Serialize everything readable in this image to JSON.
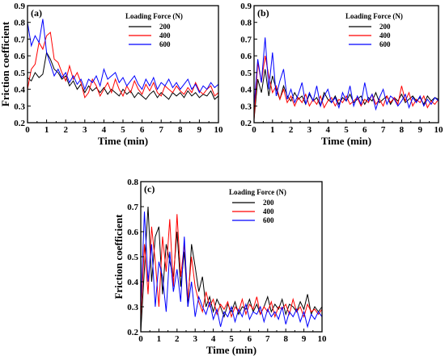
{
  "chart_data": [
    {
      "panel_label": "(a)",
      "type": "line",
      "xlabel": "Time (min)",
      "ylabel": "Friction coefficient",
      "xlim": [
        0,
        10
      ],
      "ylim": [
        0.2,
        0.9
      ],
      "xticks": [
        0,
        1,
        2,
        3,
        4,
        5,
        6,
        7,
        8,
        9,
        10
      ],
      "yticks": [
        0.2,
        0.3,
        0.4,
        0.5,
        0.6,
        0.7,
        0.8,
        0.9
      ],
      "legend_title": "Loading Force (N)",
      "legend_position": "top-right",
      "colors": [
        "#000000",
        "#ff0000",
        "#0000ff"
      ],
      "x": [
        0,
        0.2,
        0.4,
        0.6,
        0.8,
        1.0,
        1.2,
        1.4,
        1.6,
        1.8,
        2.0,
        2.2,
        2.4,
        2.6,
        2.8,
        3.0,
        3.2,
        3.4,
        3.6,
        3.8,
        4.0,
        4.2,
        4.4,
        4.6,
        4.8,
        5.0,
        5.2,
        5.4,
        5.6,
        5.8,
        6.0,
        6.2,
        6.4,
        6.6,
        6.8,
        7.0,
        7.2,
        7.4,
        7.6,
        7.8,
        8.0,
        8.2,
        8.4,
        8.6,
        8.8,
        9.0,
        9.2,
        9.4,
        9.6,
        9.8,
        10.0
      ],
      "series": [
        {
          "name": "200",
          "values": [
            0.47,
            0.45,
            0.5,
            0.47,
            0.49,
            0.62,
            0.58,
            0.52,
            0.5,
            0.46,
            0.48,
            0.42,
            0.45,
            0.4,
            0.43,
            0.38,
            0.42,
            0.39,
            0.41,
            0.38,
            0.41,
            0.37,
            0.4,
            0.38,
            0.36,
            0.4,
            0.37,
            0.39,
            0.35,
            0.38,
            0.36,
            0.34,
            0.37,
            0.39,
            0.35,
            0.38,
            0.36,
            0.34,
            0.38,
            0.36,
            0.38,
            0.35,
            0.39,
            0.36,
            0.38,
            0.35,
            0.37,
            0.36,
            0.39,
            0.34,
            0.36
          ]
        },
        {
          "name": "400",
          "values": [
            0.4,
            0.52,
            0.55,
            0.68,
            0.64,
            0.72,
            0.74,
            0.58,
            0.56,
            0.5,
            0.45,
            0.54,
            0.46,
            0.5,
            0.44,
            0.35,
            0.38,
            0.46,
            0.42,
            0.36,
            0.4,
            0.44,
            0.38,
            0.46,
            0.4,
            0.36,
            0.42,
            0.38,
            0.45,
            0.4,
            0.37,
            0.43,
            0.39,
            0.44,
            0.38,
            0.36,
            0.42,
            0.4,
            0.38,
            0.42,
            0.39,
            0.37,
            0.41,
            0.38,
            0.44,
            0.39,
            0.37,
            0.4,
            0.42,
            0.36,
            0.38
          ]
        },
        {
          "name": "600",
          "values": [
            0.8,
            0.66,
            0.72,
            0.68,
            0.82,
            0.62,
            0.55,
            0.48,
            0.52,
            0.47,
            0.5,
            0.44,
            0.48,
            0.43,
            0.46,
            0.4,
            0.46,
            0.44,
            0.48,
            0.42,
            0.52,
            0.46,
            0.48,
            0.5,
            0.44,
            0.47,
            0.42,
            0.45,
            0.48,
            0.43,
            0.4,
            0.46,
            0.42,
            0.47,
            0.4,
            0.44,
            0.42,
            0.46,
            0.41,
            0.44,
            0.4,
            0.43,
            0.46,
            0.4,
            0.43,
            0.38,
            0.42,
            0.4,
            0.44,
            0.41,
            0.43
          ]
        }
      ]
    },
    {
      "panel_label": "(b)",
      "type": "line",
      "xlabel": "Time (min)",
      "ylabel": "",
      "xlim": [
        0,
        10
      ],
      "ylim": [
        0.2,
        0.9
      ],
      "xticks": [
        0,
        1,
        2,
        3,
        4,
        5,
        6,
        7,
        8,
        9,
        10
      ],
      "yticks": [
        0.2,
        0.3,
        0.4,
        0.5,
        0.6,
        0.7,
        0.8,
        0.9
      ],
      "legend_title": "Loading Force (N)",
      "legend_position": "top-right",
      "colors": [
        "#000000",
        "#ff0000",
        "#0000ff"
      ],
      "x": [
        0,
        0.2,
        0.4,
        0.6,
        0.8,
        1.0,
        1.2,
        1.4,
        1.6,
        1.8,
        2.0,
        2.2,
        2.4,
        2.6,
        2.8,
        3.0,
        3.2,
        3.4,
        3.6,
        3.8,
        4.0,
        4.2,
        4.4,
        4.6,
        4.8,
        5.0,
        5.2,
        5.4,
        5.6,
        5.8,
        6.0,
        6.2,
        6.4,
        6.6,
        6.8,
        7.0,
        7.2,
        7.4,
        7.6,
        7.8,
        8.0,
        8.2,
        8.4,
        8.6,
        8.8,
        9.0,
        9.2,
        9.4,
        9.6,
        9.8,
        10.0
      ],
      "series": [
        {
          "name": "200",
          "values": [
            0.22,
            0.46,
            0.38,
            0.52,
            0.36,
            0.48,
            0.4,
            0.34,
            0.42,
            0.36,
            0.33,
            0.38,
            0.34,
            0.36,
            0.31,
            0.37,
            0.33,
            0.35,
            0.3,
            0.38,
            0.34,
            0.32,
            0.36,
            0.31,
            0.35,
            0.33,
            0.37,
            0.32,
            0.34,
            0.36,
            0.31,
            0.35,
            0.33,
            0.38,
            0.32,
            0.34,
            0.36,
            0.31,
            0.35,
            0.33,
            0.37,
            0.32,
            0.34,
            0.36,
            0.33,
            0.35,
            0.31,
            0.36,
            0.33,
            0.35,
            0.34
          ]
        },
        {
          "name": "400",
          "values": [
            0.22,
            0.56,
            0.44,
            0.6,
            0.48,
            0.38,
            0.42,
            0.34,
            0.4,
            0.32,
            0.36,
            0.3,
            0.35,
            0.32,
            0.37,
            0.3,
            0.34,
            0.31,
            0.36,
            0.29,
            0.33,
            0.35,
            0.3,
            0.34,
            0.32,
            0.36,
            0.31,
            0.33,
            0.35,
            0.3,
            0.34,
            0.32,
            0.37,
            0.31,
            0.34,
            0.3,
            0.36,
            0.32,
            0.35,
            0.31,
            0.42,
            0.33,
            0.38,
            0.3,
            0.34,
            0.32,
            0.36,
            0.29,
            0.33,
            0.31,
            0.34
          ]
        },
        {
          "name": "600",
          "values": [
            0.3,
            0.58,
            0.44,
            0.71,
            0.4,
            0.62,
            0.36,
            0.45,
            0.52,
            0.34,
            0.4,
            0.32,
            0.37,
            0.44,
            0.31,
            0.38,
            0.33,
            0.42,
            0.3,
            0.36,
            0.4,
            0.32,
            0.35,
            0.29,
            0.38,
            0.33,
            0.42,
            0.3,
            0.36,
            0.31,
            0.44,
            0.33,
            0.37,
            0.28,
            0.35,
            0.4,
            0.31,
            0.36,
            0.34,
            0.3,
            0.33,
            0.37,
            0.29,
            0.35,
            0.32,
            0.36,
            0.3,
            0.34,
            0.31,
            0.35,
            0.33
          ]
        }
      ]
    },
    {
      "panel_label": "(c)",
      "type": "line",
      "xlabel": "Time (min)",
      "ylabel": "Friction coefficient",
      "xlim": [
        0,
        10
      ],
      "ylim": [
        0.2,
        0.8
      ],
      "xticks": [
        0,
        1,
        2,
        3,
        4,
        5,
        6,
        7,
        8,
        9,
        10
      ],
      "yticks": [
        0.2,
        0.3,
        0.4,
        0.5,
        0.6,
        0.7,
        0.8
      ],
      "legend_title": "Loading Force (N)",
      "legend_position": "top-right",
      "colors": [
        "#000000",
        "#ff0000",
        "#0000ff"
      ],
      "x": [
        0,
        0.2,
        0.4,
        0.6,
        0.8,
        1.0,
        1.2,
        1.4,
        1.6,
        1.8,
        2.0,
        2.2,
        2.4,
        2.6,
        2.8,
        3.0,
        3.2,
        3.4,
        3.6,
        3.8,
        4.0,
        4.2,
        4.4,
        4.6,
        4.8,
        5.0,
        5.2,
        5.4,
        5.6,
        5.8,
        6.0,
        6.2,
        6.4,
        6.6,
        6.8,
        7.0,
        7.2,
        7.4,
        7.6,
        7.8,
        8.0,
        8.2,
        8.4,
        8.6,
        8.8,
        9.0,
        9.2,
        9.4,
        9.6,
        9.8,
        10.0
      ],
      "series": [
        {
          "name": "200",
          "values": [
            0.2,
            0.45,
            0.7,
            0.4,
            0.58,
            0.62,
            0.35,
            0.55,
            0.48,
            0.42,
            0.6,
            0.38,
            0.52,
            0.3,
            0.55,
            0.46,
            0.36,
            0.42,
            0.3,
            0.34,
            0.28,
            0.33,
            0.3,
            0.26,
            0.31,
            0.28,
            0.32,
            0.27,
            0.3,
            0.29,
            0.33,
            0.28,
            0.31,
            0.27,
            0.3,
            0.34,
            0.28,
            0.31,
            0.29,
            0.33,
            0.27,
            0.31,
            0.3,
            0.28,
            0.32,
            0.29,
            0.35,
            0.27,
            0.3,
            0.28,
            0.3
          ]
        },
        {
          "name": "400",
          "values": [
            0.25,
            0.55,
            0.35,
            0.62,
            0.48,
            0.3,
            0.58,
            0.44,
            0.65,
            0.38,
            0.67,
            0.42,
            0.55,
            0.33,
            0.5,
            0.38,
            0.32,
            0.28,
            0.36,
            0.3,
            0.33,
            0.27,
            0.31,
            0.29,
            0.32,
            0.26,
            0.3,
            0.28,
            0.33,
            0.27,
            0.31,
            0.29,
            0.34,
            0.27,
            0.3,
            0.28,
            0.32,
            0.26,
            0.3,
            0.29,
            0.31,
            0.27,
            0.33,
            0.28,
            0.3,
            0.26,
            0.31,
            0.28,
            0.29,
            0.27,
            0.29
          ]
        },
        {
          "name": "600",
          "values": [
            0.3,
            0.68,
            0.4,
            0.55,
            0.3,
            0.48,
            0.42,
            0.28,
            0.52,
            0.36,
            0.45,
            0.32,
            0.58,
            0.3,
            0.4,
            0.26,
            0.34,
            0.3,
            0.27,
            0.32,
            0.25,
            0.29,
            0.22,
            0.28,
            0.26,
            0.3,
            0.24,
            0.29,
            0.26,
            0.31,
            0.25,
            0.28,
            0.27,
            0.3,
            0.24,
            0.29,
            0.26,
            0.28,
            0.25,
            0.3,
            0.23,
            0.28,
            0.26,
            0.29,
            0.24,
            0.28,
            0.22,
            0.27,
            0.25,
            0.28,
            0.26
          ]
        }
      ]
    }
  ]
}
